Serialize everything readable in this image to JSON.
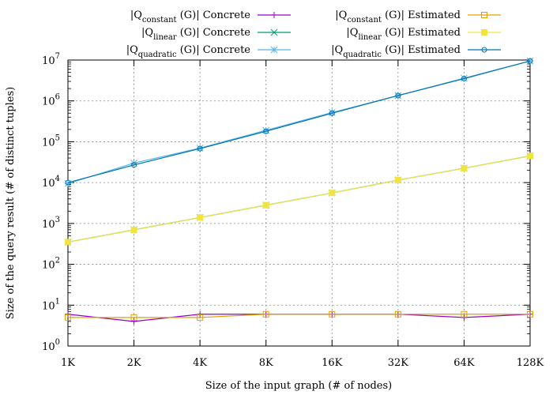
{
  "chart_data": {
    "type": "line",
    "xlabel": "Size of the input graph (# of nodes)",
    "ylabel": "Size of the query result (# of distinct tuples)",
    "x_scale": "log2",
    "y_scale": "log10",
    "ylim": [
      1,
      10000000
    ],
    "categories": [
      "1K",
      "2K",
      "4K",
      "8K",
      "16K",
      "32K",
      "64K",
      "128K"
    ],
    "y_ticks": [
      {
        "base": "10",
        "exp": "0"
      },
      {
        "base": "10",
        "exp": "1"
      },
      {
        "base": "10",
        "exp": "2"
      },
      {
        "base": "10",
        "exp": "3"
      },
      {
        "base": "10",
        "exp": "4"
      },
      {
        "base": "10",
        "exp": "5"
      },
      {
        "base": "10",
        "exp": "6"
      },
      {
        "base": "10",
        "exp": "7"
      }
    ],
    "grid": true,
    "legend_position": "top",
    "series": [
      {
        "name": "|Q constant (G)| Concrete",
        "prefix": "|Q",
        "sub": "constant",
        "suffix": " (G)| Concrete",
        "color": "#9400d3",
        "marker": "plus",
        "values": [
          6,
          4,
          6,
          6,
          6,
          6,
          5,
          6
        ]
      },
      {
        "name": "|Q linear (G)| Concrete",
        "prefix": "|Q",
        "sub": "linear",
        "suffix": " (G)| Concrete",
        "color": "#009e73",
        "marker": "cross",
        "values": [
          350,
          700,
          1400,
          2800,
          5600,
          11500,
          22500,
          45000
        ]
      },
      {
        "name": "|Q quadratic (G)| Concrete",
        "prefix": "|Q",
        "sub": "quadratic",
        "suffix": " (G)| Concrete",
        "color": "#56b4e9",
        "marker": "star",
        "values": [
          9500,
          30000,
          70000,
          190000,
          520000,
          1350000,
          3600000,
          9500000
        ]
      },
      {
        "name": "|Q constant (G)| Estimated",
        "prefix": "|Q",
        "sub": "constant",
        "suffix": " (G)| Estimated",
        "color": "#e69f00",
        "marker": "box",
        "values": [
          5,
          5,
          5,
          6,
          6,
          6,
          6,
          6
        ]
      },
      {
        "name": "|Q linear (G)| Estimated",
        "prefix": "|Q",
        "sub": "linear",
        "suffix": " (G)| Estimated",
        "color": "#f0e442",
        "marker": "filledbox",
        "values": [
          350,
          700,
          1400,
          2800,
          5600,
          11500,
          22500,
          45000
        ]
      },
      {
        "name": "|Q quadratic (G)| Estimated",
        "prefix": "|Q",
        "sub": "quadratic",
        "suffix": " (G)| Estimated",
        "color": "#0072b2",
        "marker": "circle",
        "values": [
          10000,
          27000,
          68000,
          180000,
          500000,
          1350000,
          3500000,
          9500000
        ]
      }
    ]
  }
}
